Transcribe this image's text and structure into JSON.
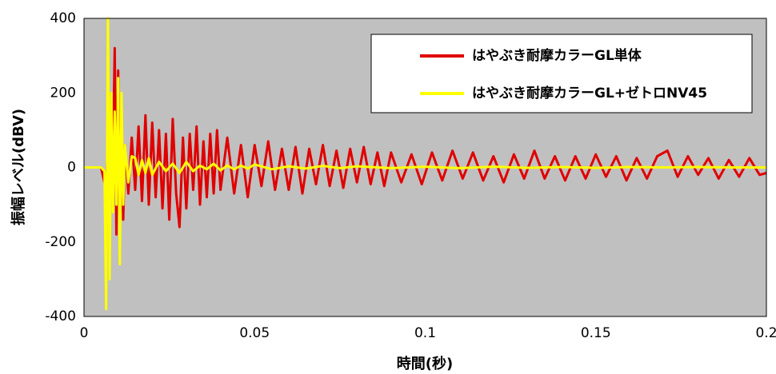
{
  "chart_data": {
    "type": "line",
    "title": "",
    "xlabel": "時間(秒)",
    "ylabel": "振幅レベル(dBV)",
    "xlim": [
      0,
      0.2
    ],
    "ylim": [
      -400,
      400
    ],
    "x_ticks": [
      0,
      0.05,
      0.1,
      0.15,
      0.2
    ],
    "x_tick_labels": [
      "0",
      "0.05",
      "0.1",
      "0.15",
      "0.2"
    ],
    "y_ticks": [
      -400,
      -200,
      0,
      200,
      400
    ],
    "y_tick_labels": [
      "-400",
      "-200",
      "0",
      "200",
      "400"
    ],
    "grid": false,
    "plot_background": "#c0c0c0",
    "legend_position": "top-right",
    "series": [
      {
        "name": "はやぶき耐摩カラーGL単体",
        "color": "#e00000",
        "x": [
          0.0,
          0.005,
          0.0065,
          0.007,
          0.0075,
          0.008,
          0.0085,
          0.009,
          0.0095,
          0.01,
          0.0105,
          0.011,
          0.0115,
          0.012,
          0.013,
          0.014,
          0.015,
          0.016,
          0.017,
          0.018,
          0.019,
          0.02,
          0.021,
          0.022,
          0.023,
          0.024,
          0.025,
          0.026,
          0.027,
          0.028,
          0.029,
          0.03,
          0.031,
          0.032,
          0.033,
          0.034,
          0.035,
          0.036,
          0.037,
          0.038,
          0.039,
          0.04,
          0.042,
          0.044,
          0.046,
          0.048,
          0.05,
          0.052,
          0.054,
          0.056,
          0.058,
          0.06,
          0.062,
          0.064,
          0.066,
          0.068,
          0.07,
          0.072,
          0.074,
          0.076,
          0.078,
          0.08,
          0.082,
          0.084,
          0.086,
          0.088,
          0.09,
          0.093,
          0.096,
          0.099,
          0.102,
          0.105,
          0.108,
          0.111,
          0.114,
          0.117,
          0.12,
          0.123,
          0.126,
          0.129,
          0.132,
          0.135,
          0.138,
          0.141,
          0.144,
          0.147,
          0.15,
          0.153,
          0.156,
          0.159,
          0.162,
          0.165,
          0.168,
          0.171,
          0.174,
          0.177,
          0.18,
          0.183,
          0.186,
          0.189,
          0.192,
          0.195,
          0.198,
          0.2
        ],
        "y": [
          0,
          0,
          -60,
          80,
          -120,
          150,
          40,
          320,
          -180,
          260,
          -120,
          90,
          -140,
          60,
          -70,
          80,
          -60,
          110,
          -90,
          140,
          -100,
          120,
          -80,
          100,
          -110,
          90,
          -140,
          130,
          -70,
          -160,
          80,
          -110,
          90,
          -60,
          110,
          -100,
          70,
          -80,
          90,
          -70,
          100,
          -60,
          80,
          -70,
          60,
          -80,
          60,
          -50,
          70,
          -60,
          50,
          -60,
          55,
          -70,
          50,
          -45,
          60,
          -50,
          45,
          -55,
          50,
          -40,
          55,
          -45,
          40,
          -50,
          40,
          -40,
          35,
          -45,
          40,
          -35,
          45,
          -30,
          40,
          -35,
          30,
          -40,
          35,
          -30,
          45,
          -30,
          30,
          -35,
          30,
          -30,
          35,
          -25,
          30,
          -35,
          25,
          -30,
          30,
          45,
          -25,
          30,
          -20,
          25,
          -30,
          20,
          -25,
          25,
          -20,
          -15
        ]
      },
      {
        "name": "はやぶき耐摩カラーGL+ゼトロNV45",
        "color": "#ffff00",
        "x": [
          0.0,
          0.005,
          0.006,
          0.0065,
          0.007,
          0.0075,
          0.008,
          0.0085,
          0.009,
          0.0095,
          0.01,
          0.0105,
          0.011,
          0.0115,
          0.012,
          0.013,
          0.014,
          0.015,
          0.016,
          0.017,
          0.018,
          0.019,
          0.02,
          0.022,
          0.024,
          0.026,
          0.028,
          0.03,
          0.032,
          0.034,
          0.036,
          0.038,
          0.04,
          0.042,
          0.044,
          0.046,
          0.048,
          0.05,
          0.055,
          0.06,
          0.065,
          0.07,
          0.075,
          0.08,
          0.09,
          0.1,
          0.11,
          0.12,
          0.13,
          0.14,
          0.15,
          0.16,
          0.17,
          0.18,
          0.19,
          0.2
        ],
        "y": [
          0,
          0,
          -10,
          -380,
          400,
          -300,
          200,
          -120,
          150,
          -100,
          240,
          -260,
          200,
          -100,
          60,
          -40,
          30,
          25,
          -20,
          20,
          -15,
          25,
          -20,
          15,
          -10,
          10,
          -15,
          15,
          -10,
          5,
          -5,
          10,
          -8,
          5,
          -5,
          5,
          -3,
          8,
          -5,
          3,
          -3,
          4,
          -2,
          3,
          -2,
          2,
          -2,
          2,
          -1,
          1,
          -1,
          1,
          0,
          1,
          0,
          0
        ]
      }
    ]
  }
}
